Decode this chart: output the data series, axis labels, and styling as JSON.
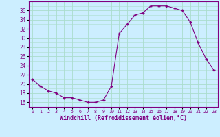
{
  "hours": [
    0,
    1,
    2,
    3,
    4,
    5,
    6,
    7,
    8,
    9,
    10,
    11,
    12,
    13,
    14,
    15,
    16,
    17,
    18,
    19,
    20,
    21,
    22,
    23
  ],
  "values": [
    21,
    19.5,
    18.5,
    18,
    17,
    17,
    16.5,
    16,
    16,
    16.5,
    19.5,
    31,
    33,
    35,
    35.5,
    37,
    37,
    37,
    36.5,
    36,
    33.5,
    29,
    25.5,
    23
  ],
  "line_color": "#800080",
  "marker": "+",
  "bg_color": "#cceeff",
  "grid_color": "#aaddcc",
  "xlabel": "Windchill (Refroidissement éolien,°C)",
  "xlabel_color": "#800080",
  "ylim": [
    15,
    38
  ],
  "yticks": [
    16,
    18,
    20,
    22,
    24,
    26,
    28,
    30,
    32,
    34,
    36
  ],
  "xlim": [
    -0.5,
    23.5
  ],
  "tick_color": "#800080",
  "spine_color": "#800080"
}
